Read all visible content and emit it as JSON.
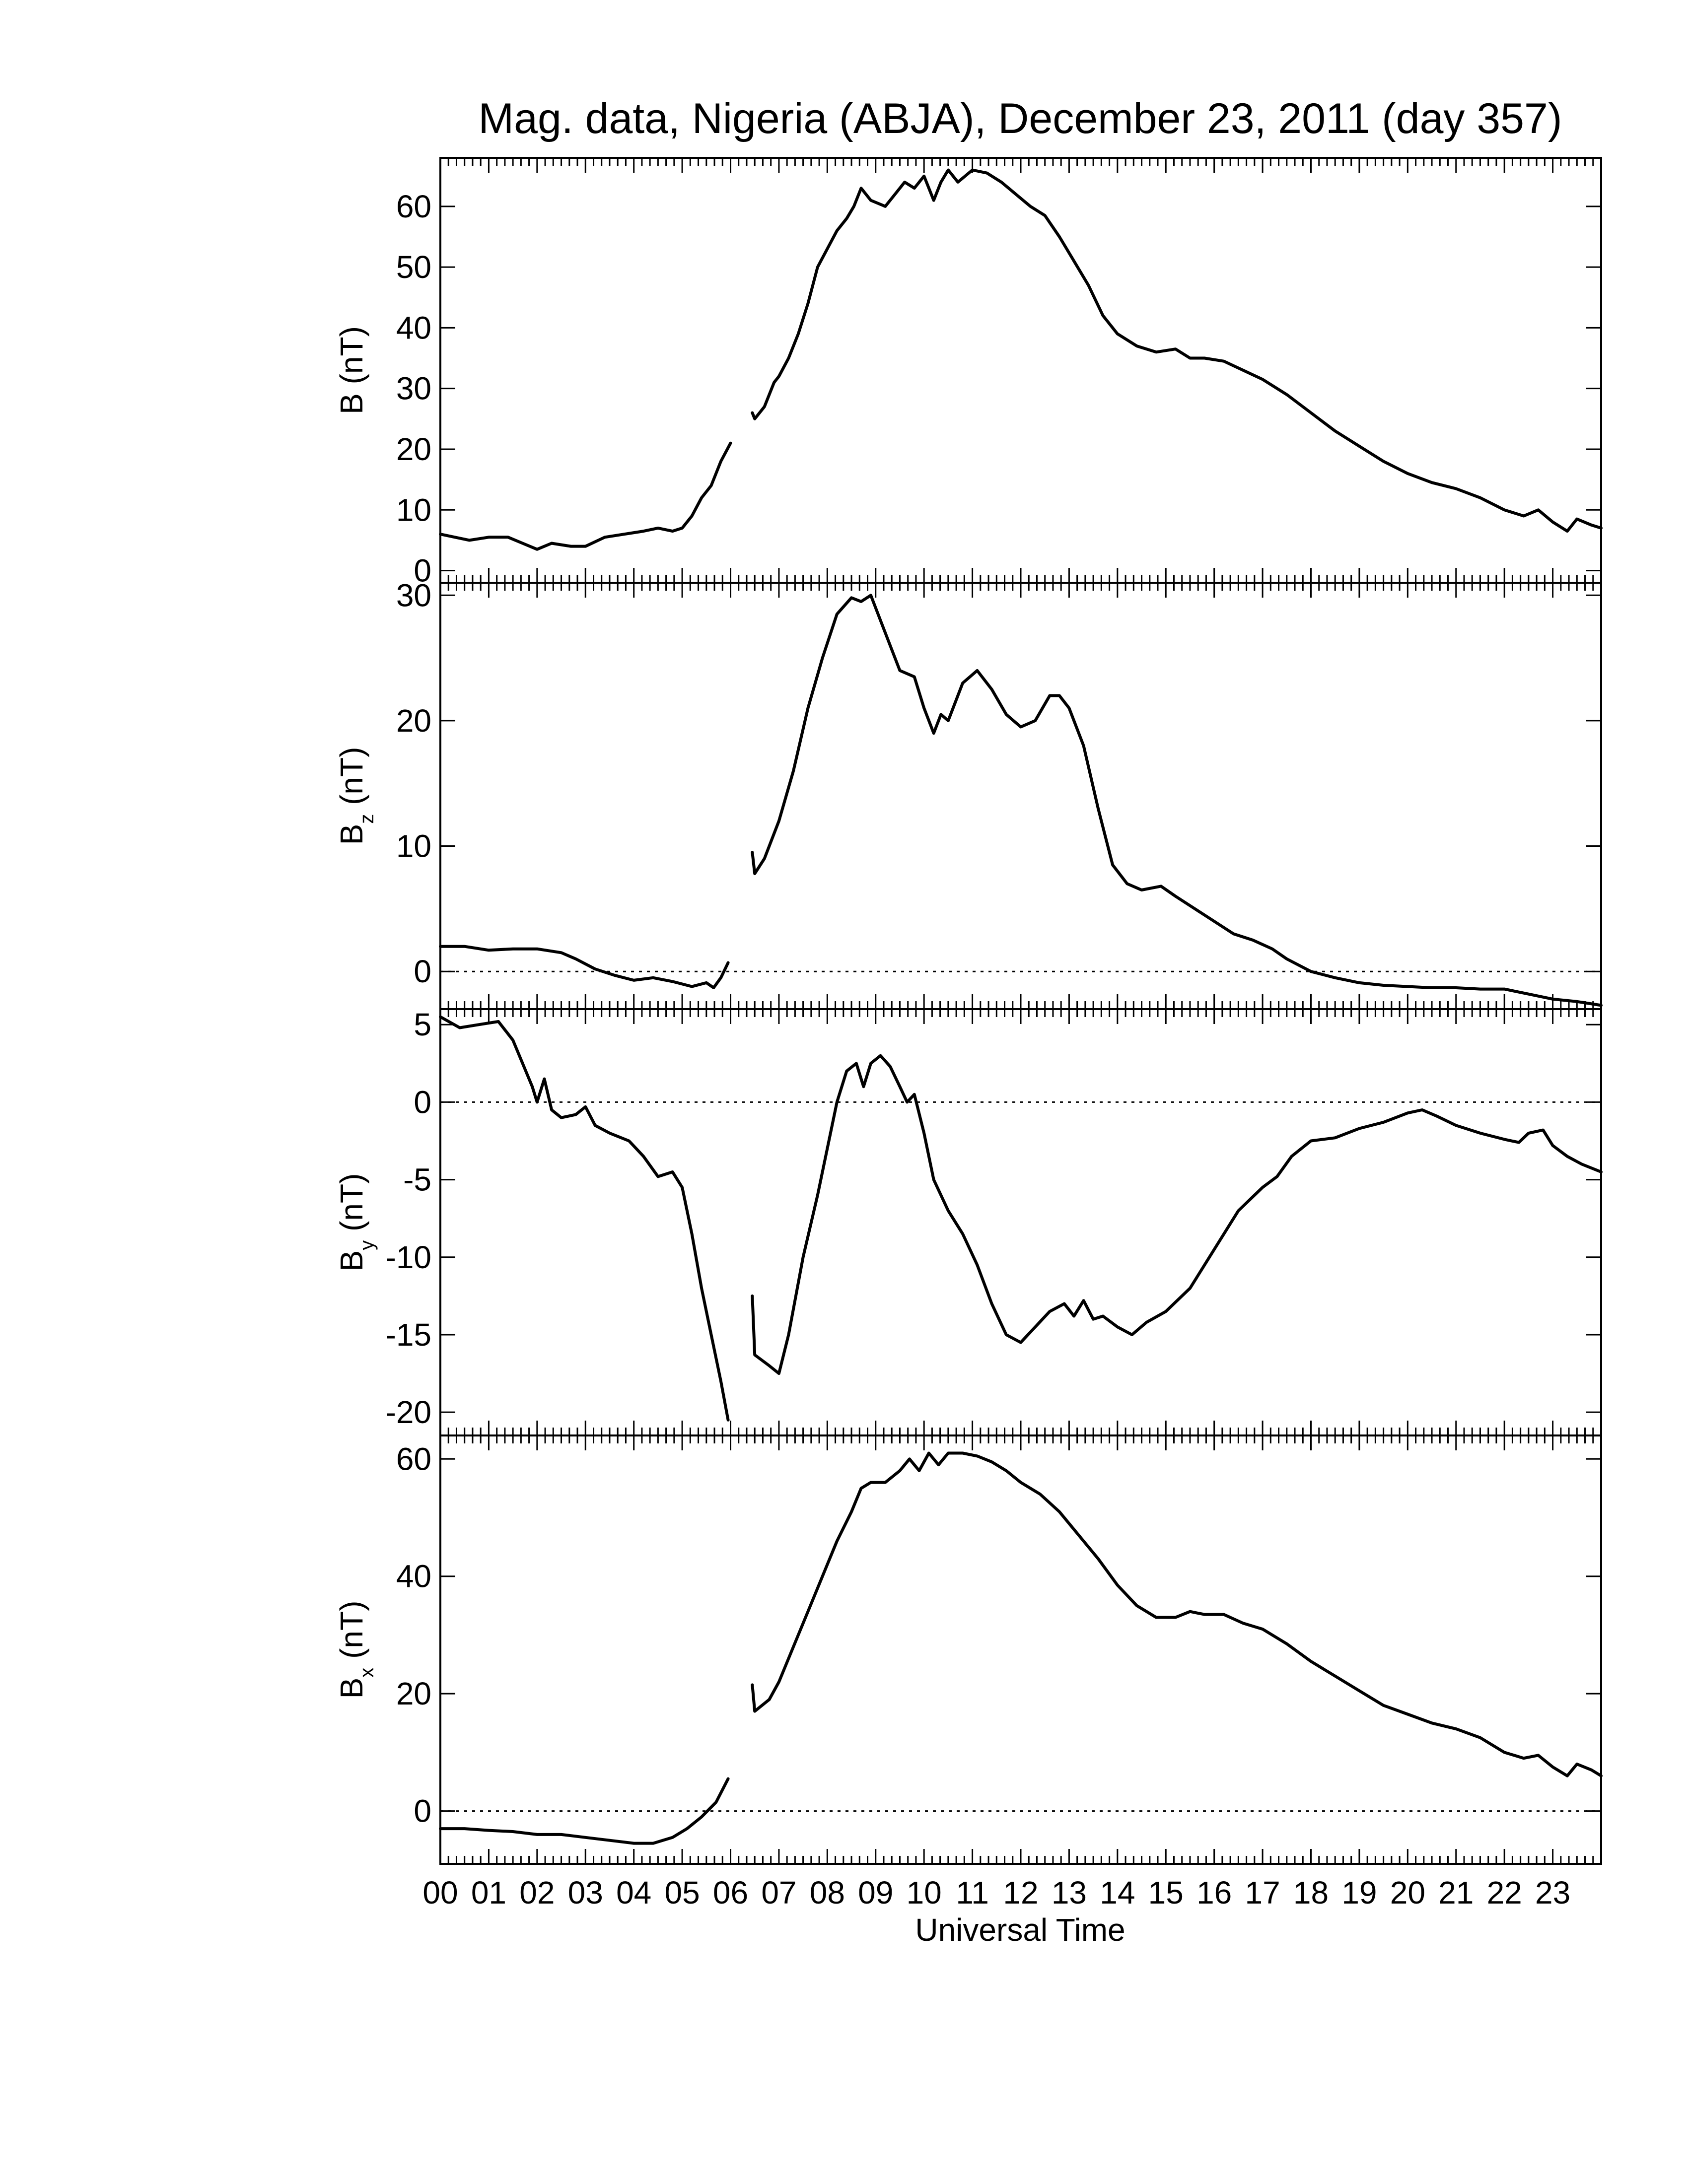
{
  "figure": {
    "title": "Mag. data, Nigeria (ABJA), December 23, 2011 (day 357)",
    "xlabel": "Universal Time"
  },
  "chart_data": [
    {
      "type": "line",
      "ylabel": "B (nT)",
      "ylabel_main": "B",
      "ylabel_sub": "",
      "ylabel_unit": " (nT)",
      "xlim": [
        0,
        24
      ],
      "ylim": [
        -2,
        68
      ],
      "yticks": [
        0,
        10,
        20,
        30,
        40,
        50,
        60
      ],
      "zero_line": false,
      "segments": [
        [
          [
            0.0,
            6
          ],
          [
            0.3,
            5.5
          ],
          [
            0.6,
            5
          ],
          [
            1.0,
            5.5
          ],
          [
            1.4,
            5.5
          ],
          [
            1.7,
            4.5
          ],
          [
            2.0,
            3.5
          ],
          [
            2.3,
            4.5
          ],
          [
            2.7,
            4
          ],
          [
            3.0,
            4
          ],
          [
            3.4,
            5.5
          ],
          [
            3.8,
            6
          ],
          [
            4.2,
            6.5
          ],
          [
            4.5,
            7
          ],
          [
            4.8,
            6.5
          ],
          [
            5.0,
            7
          ],
          [
            5.2,
            9
          ],
          [
            5.4,
            12
          ],
          [
            5.6,
            14
          ],
          [
            5.8,
            18
          ],
          [
            6.0,
            21
          ]
        ],
        [
          [
            6.45,
            26
          ],
          [
            6.5,
            25
          ],
          [
            6.7,
            27
          ],
          [
            6.9,
            31
          ],
          [
            7.0,
            32
          ],
          [
            7.2,
            35
          ],
          [
            7.4,
            39
          ],
          [
            7.6,
            44
          ],
          [
            7.8,
            50
          ],
          [
            8.0,
            53
          ],
          [
            8.2,
            56
          ],
          [
            8.4,
            58
          ],
          [
            8.55,
            60
          ],
          [
            8.7,
            63
          ],
          [
            8.9,
            61
          ],
          [
            9.2,
            60
          ],
          [
            9.4,
            62
          ],
          [
            9.6,
            64
          ],
          [
            9.8,
            63
          ],
          [
            10.0,
            65
          ],
          [
            10.2,
            61
          ],
          [
            10.35,
            64
          ],
          [
            10.5,
            66
          ],
          [
            10.7,
            64
          ],
          [
            11.0,
            66
          ],
          [
            11.3,
            65.5
          ],
          [
            11.6,
            64
          ],
          [
            11.9,
            62
          ],
          [
            12.2,
            60
          ],
          [
            12.5,
            58.5
          ],
          [
            12.8,
            55
          ],
          [
            13.1,
            51
          ],
          [
            13.4,
            47
          ],
          [
            13.7,
            42
          ],
          [
            14.0,
            39
          ],
          [
            14.4,
            37
          ],
          [
            14.8,
            36
          ],
          [
            15.2,
            36.5
          ],
          [
            15.5,
            35
          ],
          [
            15.8,
            35
          ],
          [
            16.2,
            34.5
          ],
          [
            16.6,
            33
          ],
          [
            17.0,
            31.5
          ],
          [
            17.5,
            29
          ],
          [
            18.0,
            26
          ],
          [
            18.5,
            23
          ],
          [
            19.0,
            20.5
          ],
          [
            19.5,
            18
          ],
          [
            20.0,
            16
          ],
          [
            20.5,
            14.5
          ],
          [
            21.0,
            13.5
          ],
          [
            21.5,
            12
          ],
          [
            22.0,
            10
          ],
          [
            22.4,
            9
          ],
          [
            22.7,
            10
          ],
          [
            23.0,
            8
          ],
          [
            23.3,
            6.5
          ],
          [
            23.5,
            8.5
          ],
          [
            23.8,
            7.5
          ],
          [
            24.0,
            7
          ]
        ]
      ]
    },
    {
      "type": "line",
      "ylabel": "Bz (nT)",
      "ylabel_main": "B",
      "ylabel_sub": "z",
      "ylabel_unit": " (nT)",
      "xlim": [
        0,
        24
      ],
      "ylim": [
        -3,
        31
      ],
      "yticks": [
        0,
        10,
        20,
        30
      ],
      "zero_line": true,
      "segments": [
        [
          [
            0.0,
            2
          ],
          [
            0.5,
            2
          ],
          [
            1.0,
            1.7
          ],
          [
            1.5,
            1.8
          ],
          [
            2.0,
            1.8
          ],
          [
            2.5,
            1.5
          ],
          [
            2.8,
            1
          ],
          [
            3.2,
            0.2
          ],
          [
            3.6,
            -0.3
          ],
          [
            4.0,
            -0.7
          ],
          [
            4.4,
            -0.5
          ],
          [
            4.8,
            -0.8
          ],
          [
            5.2,
            -1.2
          ],
          [
            5.5,
            -0.9
          ],
          [
            5.65,
            -1.3
          ],
          [
            5.8,
            -0.5
          ],
          [
            5.95,
            0.7
          ]
        ],
        [
          [
            6.45,
            9.5
          ],
          [
            6.5,
            7.8
          ],
          [
            6.7,
            9
          ],
          [
            7.0,
            12
          ],
          [
            7.3,
            16
          ],
          [
            7.6,
            21
          ],
          [
            7.9,
            25
          ],
          [
            8.2,
            28.5
          ],
          [
            8.5,
            29.8
          ],
          [
            8.7,
            29.5
          ],
          [
            8.9,
            30
          ],
          [
            9.2,
            27
          ],
          [
            9.5,
            24
          ],
          [
            9.8,
            23.5
          ],
          [
            10.0,
            21
          ],
          [
            10.2,
            19
          ],
          [
            10.35,
            20.5
          ],
          [
            10.5,
            20
          ],
          [
            10.8,
            23
          ],
          [
            11.1,
            24
          ],
          [
            11.4,
            22.5
          ],
          [
            11.7,
            20.5
          ],
          [
            12.0,
            19.5
          ],
          [
            12.3,
            20
          ],
          [
            12.6,
            22
          ],
          [
            12.8,
            22
          ],
          [
            13.0,
            21
          ],
          [
            13.3,
            18
          ],
          [
            13.6,
            13
          ],
          [
            13.9,
            8.5
          ],
          [
            14.2,
            7
          ],
          [
            14.5,
            6.5
          ],
          [
            14.9,
            6.8
          ],
          [
            15.2,
            6
          ],
          [
            15.6,
            5
          ],
          [
            16.0,
            4
          ],
          [
            16.4,
            3
          ],
          [
            16.8,
            2.5
          ],
          [
            17.2,
            1.8
          ],
          [
            17.5,
            1
          ],
          [
            18.0,
            0
          ],
          [
            18.5,
            -0.5
          ],
          [
            19.0,
            -0.9
          ],
          [
            19.5,
            -1.1
          ],
          [
            20.0,
            -1.2
          ],
          [
            20.5,
            -1.3
          ],
          [
            21.0,
            -1.3
          ],
          [
            21.5,
            -1.4
          ],
          [
            22.0,
            -1.4
          ],
          [
            22.5,
            -1.8
          ],
          [
            23.0,
            -2.2
          ],
          [
            23.5,
            -2.4
          ],
          [
            24.0,
            -2.7
          ]
        ]
      ]
    },
    {
      "type": "line",
      "ylabel": "By (nT)",
      "ylabel_main": "B",
      "ylabel_sub": "y",
      "ylabel_unit": " (nT)",
      "xlim": [
        0,
        24
      ],
      "ylim": [
        -21.5,
        6
      ],
      "yticks": [
        5,
        0,
        -5,
        -10,
        -15,
        -20
      ],
      "zero_line": true,
      "segments": [
        [
          [
            0.0,
            5.5
          ],
          [
            0.4,
            4.8
          ],
          [
            0.8,
            5
          ],
          [
            1.2,
            5.2
          ],
          [
            1.5,
            4
          ],
          [
            1.7,
            2.5
          ],
          [
            1.9,
            1
          ],
          [
            2.0,
            0
          ],
          [
            2.15,
            1.5
          ],
          [
            2.3,
            -0.5
          ],
          [
            2.5,
            -1
          ],
          [
            2.8,
            -0.8
          ],
          [
            3.0,
            -0.3
          ],
          [
            3.2,
            -1.5
          ],
          [
            3.5,
            -2
          ],
          [
            3.9,
            -2.5
          ],
          [
            4.2,
            -3.5
          ],
          [
            4.5,
            -4.8
          ],
          [
            4.8,
            -4.5
          ],
          [
            5.0,
            -5.5
          ],
          [
            5.2,
            -8.5
          ],
          [
            5.4,
            -12
          ],
          [
            5.6,
            -15
          ],
          [
            5.8,
            -18
          ],
          [
            5.95,
            -20.5
          ]
        ],
        [
          [
            6.45,
            -12.5
          ],
          [
            6.5,
            -16.3
          ],
          [
            6.8,
            -17
          ],
          [
            7.0,
            -17.5
          ],
          [
            7.2,
            -15
          ],
          [
            7.5,
            -10
          ],
          [
            7.8,
            -6
          ],
          [
            8.0,
            -3
          ],
          [
            8.2,
            0
          ],
          [
            8.4,
            2
          ],
          [
            8.6,
            2.5
          ],
          [
            8.75,
            1
          ],
          [
            8.9,
            2.5
          ],
          [
            9.1,
            3
          ],
          [
            9.3,
            2.3
          ],
          [
            9.5,
            1
          ],
          [
            9.65,
            0
          ],
          [
            9.8,
            0.5
          ],
          [
            10.0,
            -2
          ],
          [
            10.2,
            -5
          ],
          [
            10.5,
            -7
          ],
          [
            10.8,
            -8.5
          ],
          [
            11.1,
            -10.5
          ],
          [
            11.4,
            -13
          ],
          [
            11.7,
            -15
          ],
          [
            12.0,
            -15.5
          ],
          [
            12.3,
            -14.5
          ],
          [
            12.6,
            -13.5
          ],
          [
            12.9,
            -13
          ],
          [
            13.1,
            -13.8
          ],
          [
            13.3,
            -12.8
          ],
          [
            13.5,
            -14
          ],
          [
            13.7,
            -13.8
          ],
          [
            14.0,
            -14.5
          ],
          [
            14.3,
            -15
          ],
          [
            14.6,
            -14.2
          ],
          [
            15.0,
            -13.5
          ],
          [
            15.5,
            -12
          ],
          [
            16.0,
            -9.5
          ],
          [
            16.5,
            -7
          ],
          [
            17.0,
            -5.5
          ],
          [
            17.3,
            -4.8
          ],
          [
            17.6,
            -3.5
          ],
          [
            18.0,
            -2.5
          ],
          [
            18.5,
            -2.3
          ],
          [
            19.0,
            -1.7
          ],
          [
            19.5,
            -1.3
          ],
          [
            20.0,
            -0.7
          ],
          [
            20.3,
            -0.5
          ],
          [
            20.6,
            -0.9
          ],
          [
            21.0,
            -1.5
          ],
          [
            21.5,
            -2
          ],
          [
            22.0,
            -2.4
          ],
          [
            22.3,
            -2.6
          ],
          [
            22.5,
            -2
          ],
          [
            22.8,
            -1.8
          ],
          [
            23.0,
            -2.8
          ],
          [
            23.3,
            -3.5
          ],
          [
            23.6,
            -4
          ],
          [
            24.0,
            -4.5
          ]
        ]
      ]
    },
    {
      "type": "line",
      "ylabel": "Bx (nT)",
      "ylabel_main": "B",
      "ylabel_sub": "x",
      "ylabel_unit": " (nT)",
      "xlim": [
        0,
        24
      ],
      "ylim": [
        -9,
        64
      ],
      "yticks": [
        0,
        20,
        40,
        60
      ],
      "zero_line": true,
      "segments": [
        [
          [
            0.0,
            -3
          ],
          [
            0.5,
            -3
          ],
          [
            1.0,
            -3.3
          ],
          [
            1.5,
            -3.5
          ],
          [
            2.0,
            -4
          ],
          [
            2.5,
            -4
          ],
          [
            3.0,
            -4.5
          ],
          [
            3.5,
            -5
          ],
          [
            4.0,
            -5.5
          ],
          [
            4.4,
            -5.5
          ],
          [
            4.8,
            -4.5
          ],
          [
            5.1,
            -3
          ],
          [
            5.4,
            -1
          ],
          [
            5.7,
            1.5
          ],
          [
            5.95,
            5.5
          ]
        ],
        [
          [
            6.45,
            21.5
          ],
          [
            6.5,
            17
          ],
          [
            6.8,
            19
          ],
          [
            7.0,
            22
          ],
          [
            7.3,
            28
          ],
          [
            7.6,
            34
          ],
          [
            7.9,
            40
          ],
          [
            8.2,
            46
          ],
          [
            8.5,
            51
          ],
          [
            8.7,
            55
          ],
          [
            8.9,
            56
          ],
          [
            9.2,
            56
          ],
          [
            9.5,
            58
          ],
          [
            9.7,
            60
          ],
          [
            9.9,
            58
          ],
          [
            10.1,
            61
          ],
          [
            10.3,
            59
          ],
          [
            10.5,
            61
          ],
          [
            10.8,
            61
          ],
          [
            11.1,
            60.5
          ],
          [
            11.4,
            59.5
          ],
          [
            11.7,
            58
          ],
          [
            12.0,
            56
          ],
          [
            12.4,
            54
          ],
          [
            12.8,
            51
          ],
          [
            13.2,
            47
          ],
          [
            13.6,
            43
          ],
          [
            14.0,
            38.5
          ],
          [
            14.4,
            35
          ],
          [
            14.8,
            33
          ],
          [
            15.2,
            33
          ],
          [
            15.5,
            34
          ],
          [
            15.8,
            33.5
          ],
          [
            16.2,
            33.5
          ],
          [
            16.6,
            32
          ],
          [
            17.0,
            31
          ],
          [
            17.5,
            28.5
          ],
          [
            18.0,
            25.5
          ],
          [
            18.5,
            23
          ],
          [
            19.0,
            20.5
          ],
          [
            19.5,
            18
          ],
          [
            20.0,
            16.5
          ],
          [
            20.5,
            15
          ],
          [
            21.0,
            14
          ],
          [
            21.5,
            12.5
          ],
          [
            22.0,
            10
          ],
          [
            22.4,
            9
          ],
          [
            22.7,
            9.5
          ],
          [
            23.0,
            7.5
          ],
          [
            23.3,
            6
          ],
          [
            23.5,
            8
          ],
          [
            23.8,
            7
          ],
          [
            24.0,
            6
          ]
        ]
      ]
    }
  ]
}
